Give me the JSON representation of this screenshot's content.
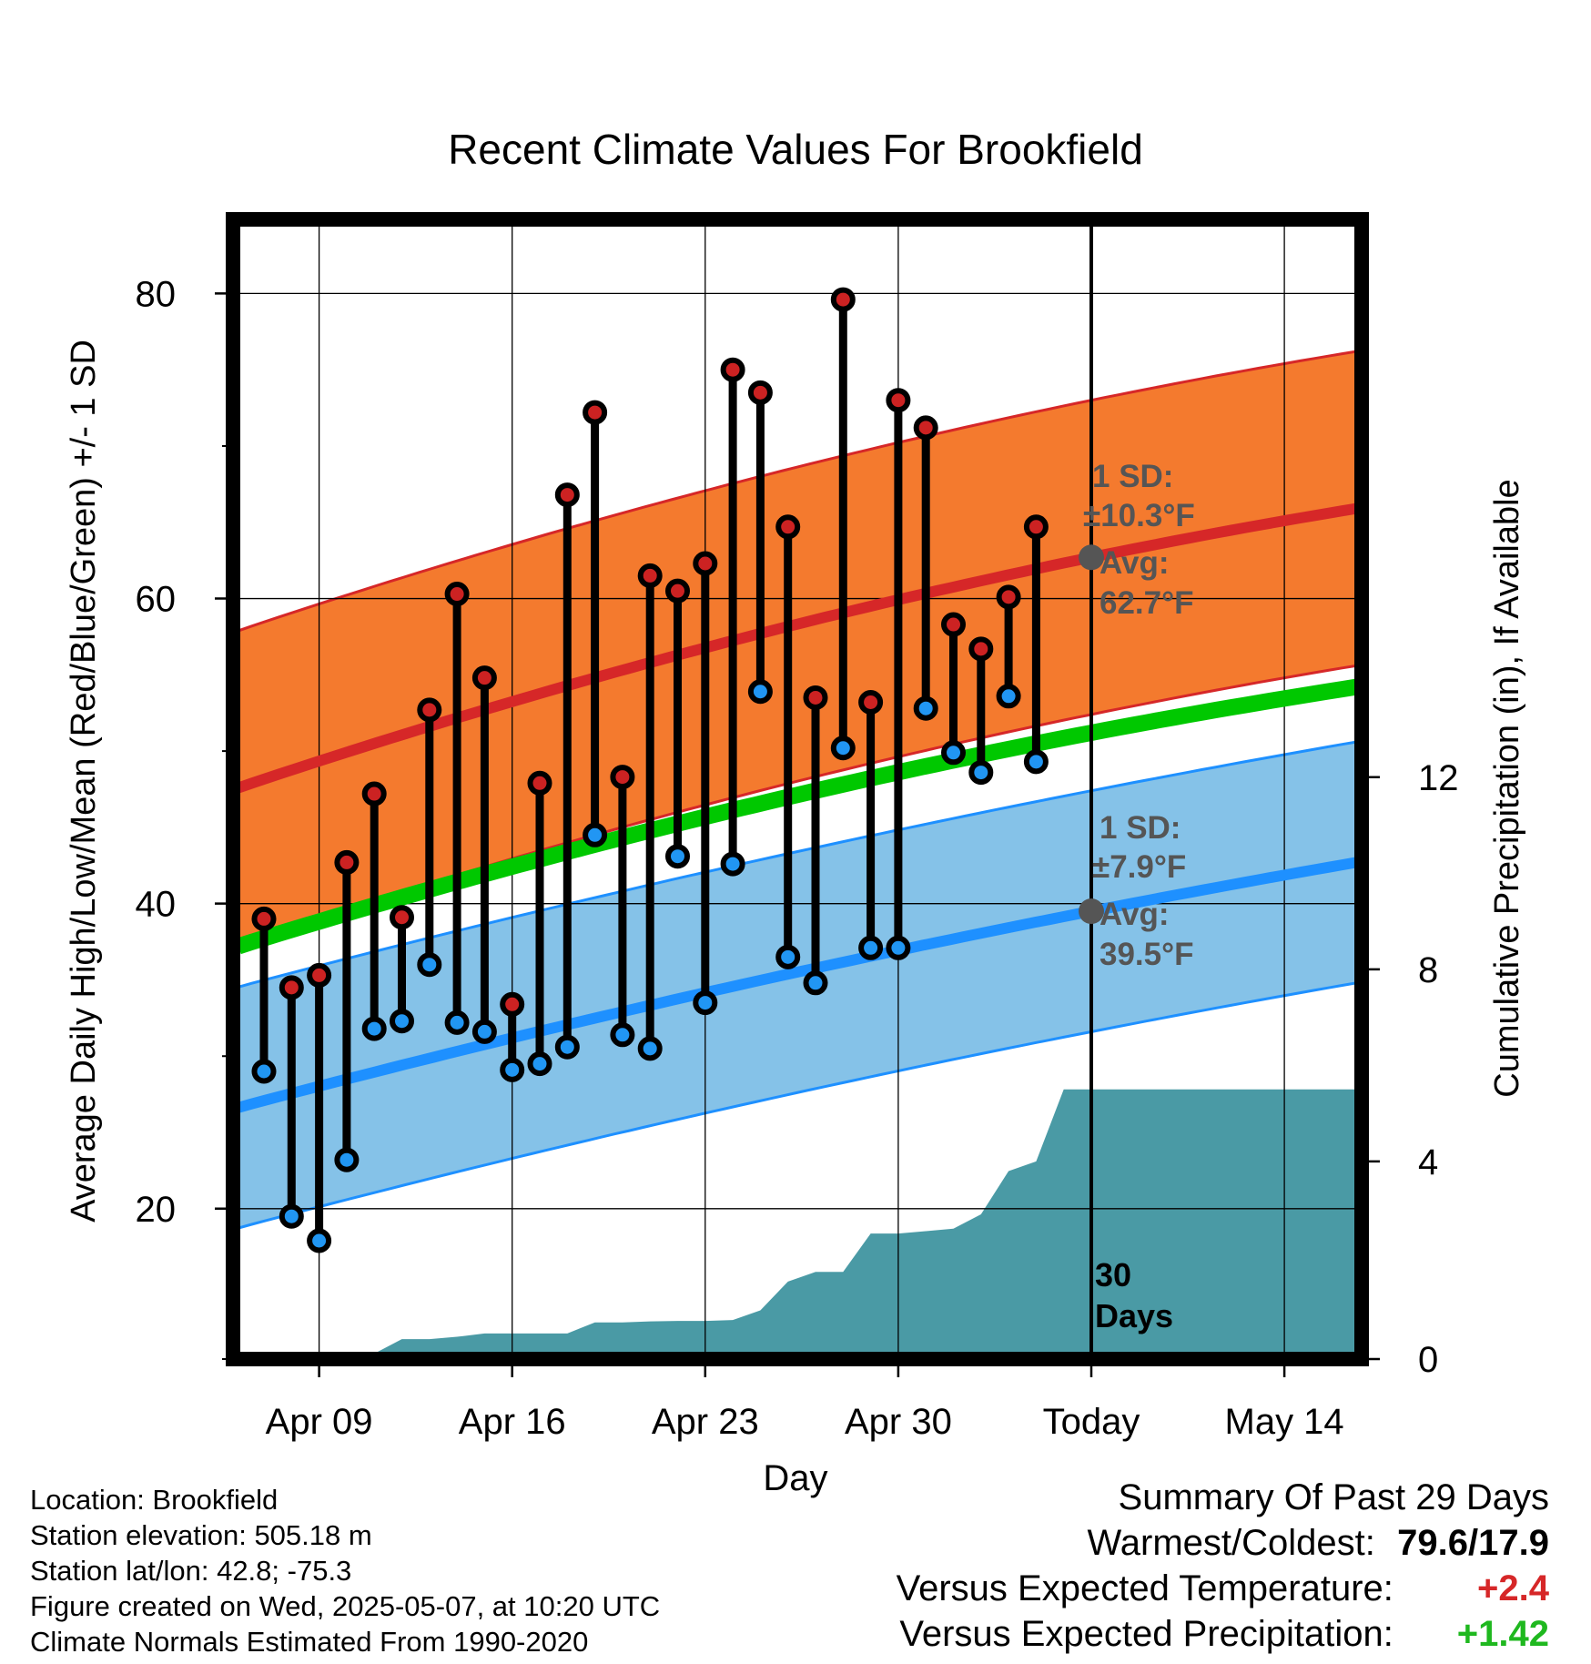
{
  "chart_data": {
    "type": "line",
    "title": "Recent Climate Values For Brookfield",
    "xlabel": "Day",
    "ylabel": "Average Daily High/Low/Mean (Red/Blue/Green) +/- 1 SD",
    "y2label": "Cumulative Precipitation (in), If Available",
    "x_ticks": [
      "Apr 09",
      "Apr 16",
      "Apr 23",
      "Apr 30",
      "Today",
      "May 14"
    ],
    "y_ticks": [
      20,
      40,
      60,
      80
    ],
    "y2_ticks": [
      0,
      4,
      8,
      12
    ],
    "ylim": [
      10.5,
      84.5
    ],
    "y2lim": [
      0,
      23.5
    ],
    "grid": true,
    "dates_start": "2025-04-07",
    "today": "2025-05-07",
    "highs": [
      39.0,
      34.5,
      35.3,
      42.7,
      47.2,
      39.1,
      52.7,
      60.3,
      54.8,
      33.4,
      47.9,
      66.8,
      72.2,
      48.3,
      61.5,
      60.5,
      62.3,
      75.0,
      73.5,
      64.7,
      53.5,
      79.6,
      53.2,
      73.0,
      71.2,
      58.3,
      56.7,
      60.1,
      64.7
    ],
    "lows": [
      29.0,
      19.5,
      17.9,
      23.2,
      31.8,
      32.3,
      36.0,
      32.2,
      31.6,
      29.1,
      29.5,
      30.6,
      44.5,
      31.4,
      30.5,
      43.1,
      33.5,
      42.6,
      53.9,
      36.5,
      34.8,
      50.2,
      37.1,
      37.1,
      52.8,
      49.9,
      48.6,
      53.6,
      49.3
    ],
    "normal_high": {
      "start": 47.8,
      "today": 62.7,
      "end": 65.9,
      "sd": 10.3,
      "label_sd": "1 SD:",
      "label_sd_value": "±10.3°F",
      "label_avg": "Avg:",
      "label_avg_value": "62.7°F"
    },
    "normal_low": {
      "start": 26.8,
      "today": 39.5,
      "end": 42.7,
      "sd": 7.9,
      "label_sd": "1 SD:",
      "label_sd_value": "±7.9°F",
      "label_avg": "Avg:",
      "label_avg_value": "39.5°F"
    },
    "normal_mean": {
      "start": 37.4,
      "today": 51.2,
      "end": 54.2
    },
    "precip_cumulative": [
      0,
      0,
      0,
      0,
      0,
      0.3,
      0.3,
      0.35,
      0.42,
      0.42,
      0.42,
      0.42,
      0.65,
      0.65,
      0.67,
      0.68,
      0.68,
      0.7,
      0.9,
      1.5,
      1.7,
      1.7,
      2.5,
      2.5,
      2.55,
      2.6,
      2.9,
      3.8,
      4.0,
      5.5,
      5.5
    ],
    "period_label_line1": "30",
    "period_label_line2": "Days"
  },
  "footer": {
    "location": "Location: Brookfield",
    "elevation": "Station elevation: 505.18 m",
    "latlon": "Station lat/lon: 42.8; -75.3",
    "created": "Figure created on Wed, 2025-05-07, at 10:20 UTC",
    "normals": "Climate Normals Estimated From 1990-2020"
  },
  "summary": {
    "title": "Summary Of Past 29 Days",
    "warm_cold_label": "Warmest/Coldest:",
    "warm_cold_value": "79.6/17.9",
    "temp_label": "Versus Expected Temperature:",
    "temp_value": "+2.4",
    "temp_color": "#d62728",
    "precip_label": "Versus Expected Precipitation:",
    "precip_value": "+1.42",
    "precip_color": "#1fb81f"
  },
  "colors": {
    "high_band": "#f47a2e",
    "high_line": "#d62728",
    "low_band": "#85c2e8",
    "low_line": "#1e90ff",
    "mean_line": "#00c800",
    "precip_fill": "#4a9aa5",
    "high_dot": "#cc2222",
    "low_dot": "#2196f3",
    "annotation": "#555555"
  }
}
